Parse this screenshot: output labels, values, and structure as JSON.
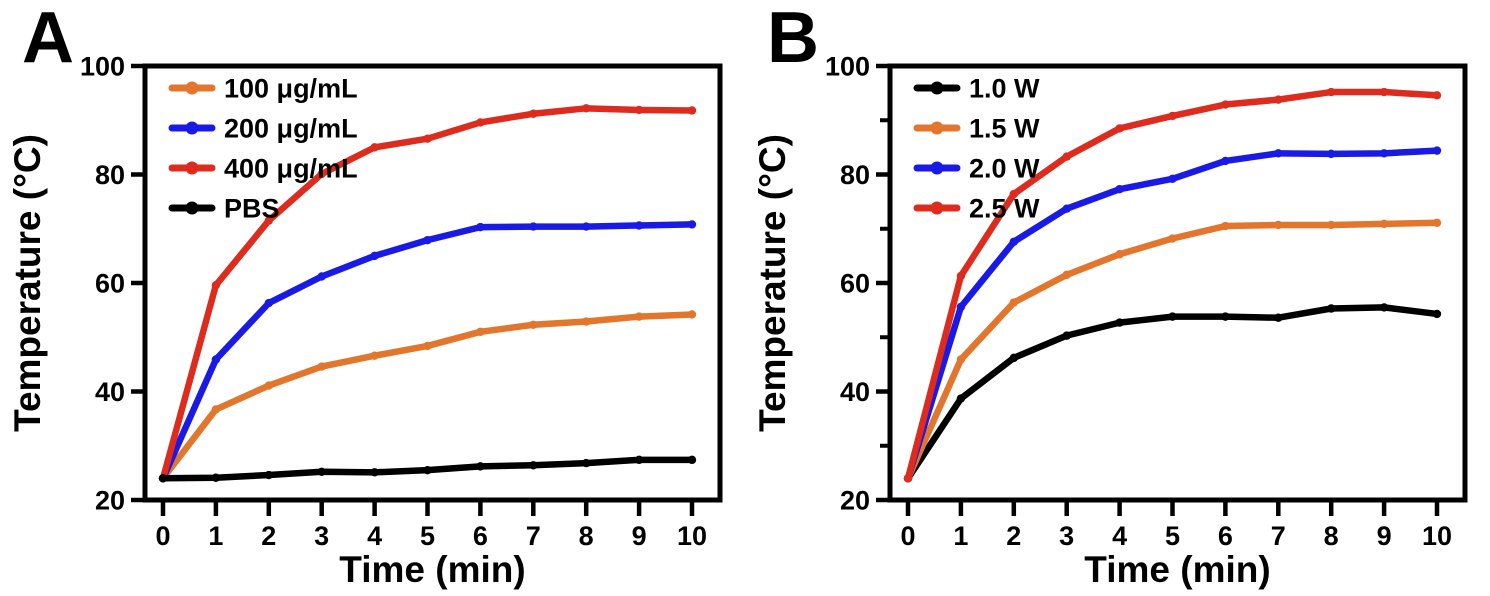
{
  "figure": {
    "background": "#FFFFFF",
    "panel_labels": [
      "A",
      "B"
    ]
  },
  "chart_data": [
    {
      "type": "line",
      "panel": "A",
      "title": "",
      "xlabel": "Time (min)",
      "ylabel": "Temperature (°C)",
      "x": [
        0,
        1,
        2,
        3,
        4,
        5,
        6,
        7,
        8,
        9,
        10
      ],
      "xticks": [
        0,
        1,
        2,
        3,
        4,
        5,
        6,
        7,
        8,
        9,
        10
      ],
      "yticks": [
        20,
        40,
        60,
        80,
        100
      ],
      "y_minor_ticks": [],
      "xlim": [
        0,
        10
      ],
      "ylim": [
        20,
        100
      ],
      "grid": false,
      "legend_position": "top-left",
      "marker": "circle",
      "series": [
        {
          "name": "100 μg/mL",
          "color": "#E2762C",
          "values": [
            24,
            36.7,
            41.1,
            44.6,
            46.6,
            48.4,
            51.0,
            52.3,
            52.9,
            53.8,
            54.2
          ]
        },
        {
          "name": "200 μg/mL",
          "color": "#1A1AE6",
          "values": [
            24,
            45.9,
            56.3,
            61.2,
            65.0,
            67.9,
            70.3,
            70.4,
            70.4,
            70.6,
            70.8
          ]
        },
        {
          "name": "400 μg/mL",
          "color": "#DD2C1E",
          "values": [
            24,
            59.6,
            71.5,
            80.1,
            85.0,
            86.6,
            89.6,
            91.2,
            92.2,
            91.9,
            91.8
          ]
        },
        {
          "name": "PBS",
          "color": "#000000",
          "values": [
            24,
            24.1,
            24.6,
            25.2,
            25.1,
            25.5,
            26.2,
            26.4,
            26.8,
            27.4,
            27.4
          ]
        }
      ]
    },
    {
      "type": "line",
      "panel": "B",
      "title": "",
      "xlabel": "Time (min)",
      "ylabel": "Temperature (°C)",
      "x": [
        0,
        1,
        2,
        3,
        4,
        5,
        6,
        7,
        8,
        9,
        10
      ],
      "xticks": [
        0,
        1,
        2,
        3,
        4,
        5,
        6,
        7,
        8,
        9,
        10
      ],
      "yticks": [
        20,
        40,
        60,
        80,
        100
      ],
      "y_minor_ticks": [
        30,
        50,
        70,
        90
      ],
      "xlim": [
        0,
        10
      ],
      "ylim": [
        20,
        100
      ],
      "grid": false,
      "legend_position": "top-left",
      "marker": "circle",
      "series": [
        {
          "name": "1.0 W",
          "color": "#000000",
          "values": [
            24,
            38.7,
            46.2,
            50.3,
            52.7,
            53.8,
            53.8,
            53.6,
            55.3,
            55.5,
            54.3
          ]
        },
        {
          "name": "1.5 W",
          "color": "#E2762C",
          "values": [
            24,
            45.9,
            56.4,
            61.5,
            65.3,
            68.2,
            70.5,
            70.7,
            70.7,
            70.9,
            71.1
          ]
        },
        {
          "name": "2.0 W",
          "color": "#1A1AE6",
          "values": [
            24,
            55.6,
            67.6,
            73.7,
            77.3,
            79.2,
            82.5,
            83.9,
            83.8,
            83.9,
            84.4
          ]
        },
        {
          "name": "2.5 W",
          "color": "#DD2C1E",
          "values": [
            24,
            61.3,
            76.4,
            83.3,
            88.5,
            90.8,
            92.9,
            93.8,
            95.2,
            95.2,
            94.6
          ]
        }
      ]
    }
  ]
}
